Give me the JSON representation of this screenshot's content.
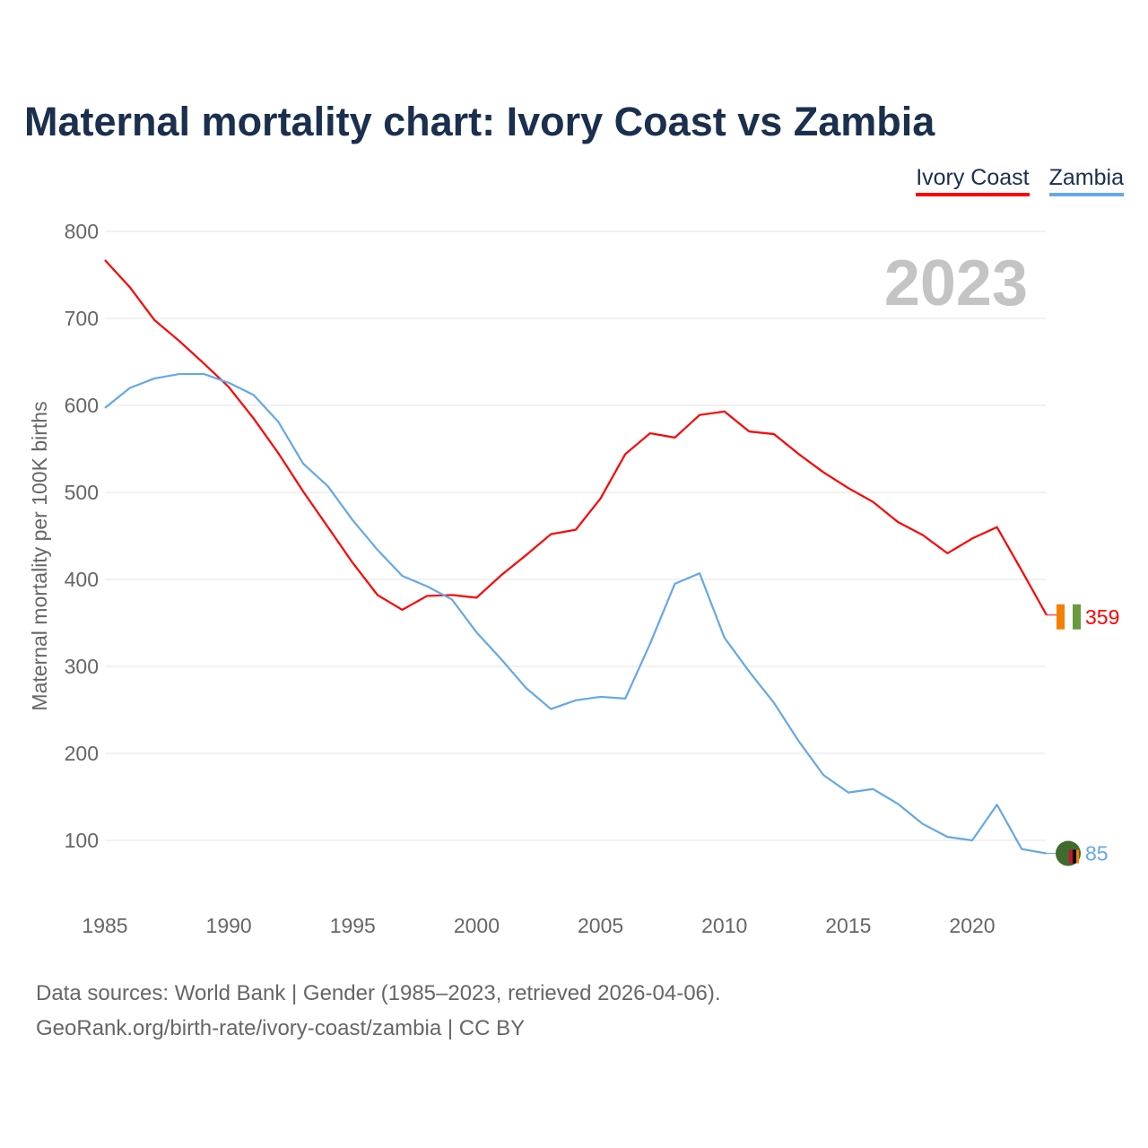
{
  "chart_data": {
    "type": "line",
    "title": "Maternal mortality chart: Ivory Coast vs Zambia",
    "ylabel": "Maternal mortality per 100K births",
    "xlabel": "",
    "ylim": [
      30,
      800
    ],
    "xlim": [
      1985,
      2023
    ],
    "yticks": [
      100,
      200,
      300,
      400,
      500,
      600,
      700,
      800
    ],
    "xticks": [
      1985,
      1990,
      1995,
      2000,
      2005,
      2010,
      2015,
      2020
    ],
    "grid": true,
    "legend_position": "top-right",
    "year_label": "2023",
    "x": [
      1985,
      1986,
      1987,
      1988,
      1989,
      1990,
      1991,
      1992,
      1993,
      1994,
      1995,
      1996,
      1997,
      1998,
      1999,
      2000,
      2001,
      2002,
      2003,
      2004,
      2005,
      2006,
      2007,
      2008,
      2009,
      2010,
      2011,
      2012,
      2013,
      2014,
      2015,
      2016,
      2017,
      2018,
      2019,
      2020,
      2021,
      2022,
      2023
    ],
    "series": [
      {
        "name": "Ivory Coast",
        "color": "#ff0000",
        "end_label": "359",
        "values": [
          767,
          736,
          698,
          674,
          648,
          621,
          585,
          545,
          501,
          460,
          419,
          382,
          365,
          381,
          382,
          379,
          405,
          428,
          452,
          457,
          493,
          544,
          568,
          563,
          589,
          593,
          570,
          567,
          544,
          523,
          505,
          489,
          466,
          451,
          430,
          447,
          460,
          410,
          359
        ]
      },
      {
        "name": "Zambia",
        "color": "#64a8e8",
        "end_label": "85",
        "values": [
          597,
          620,
          631,
          636,
          636,
          626,
          612,
          581,
          533,
          507,
          468,
          434,
          404,
          392,
          377,
          339,
          308,
          275,
          251,
          261,
          265,
          263,
          326,
          395,
          407,
          333,
          294,
          258,
          214,
          175,
          155,
          159,
          142,
          119,
          104,
          100,
          141,
          90,
          85
        ]
      }
    ]
  },
  "footer": {
    "line1": "Data sources: World Bank | Gender (1985–2023, retrieved 2026-04-06).",
    "line2": "GeoRank.org/birth-rate/ivory-coast/zambia | CC BY"
  }
}
